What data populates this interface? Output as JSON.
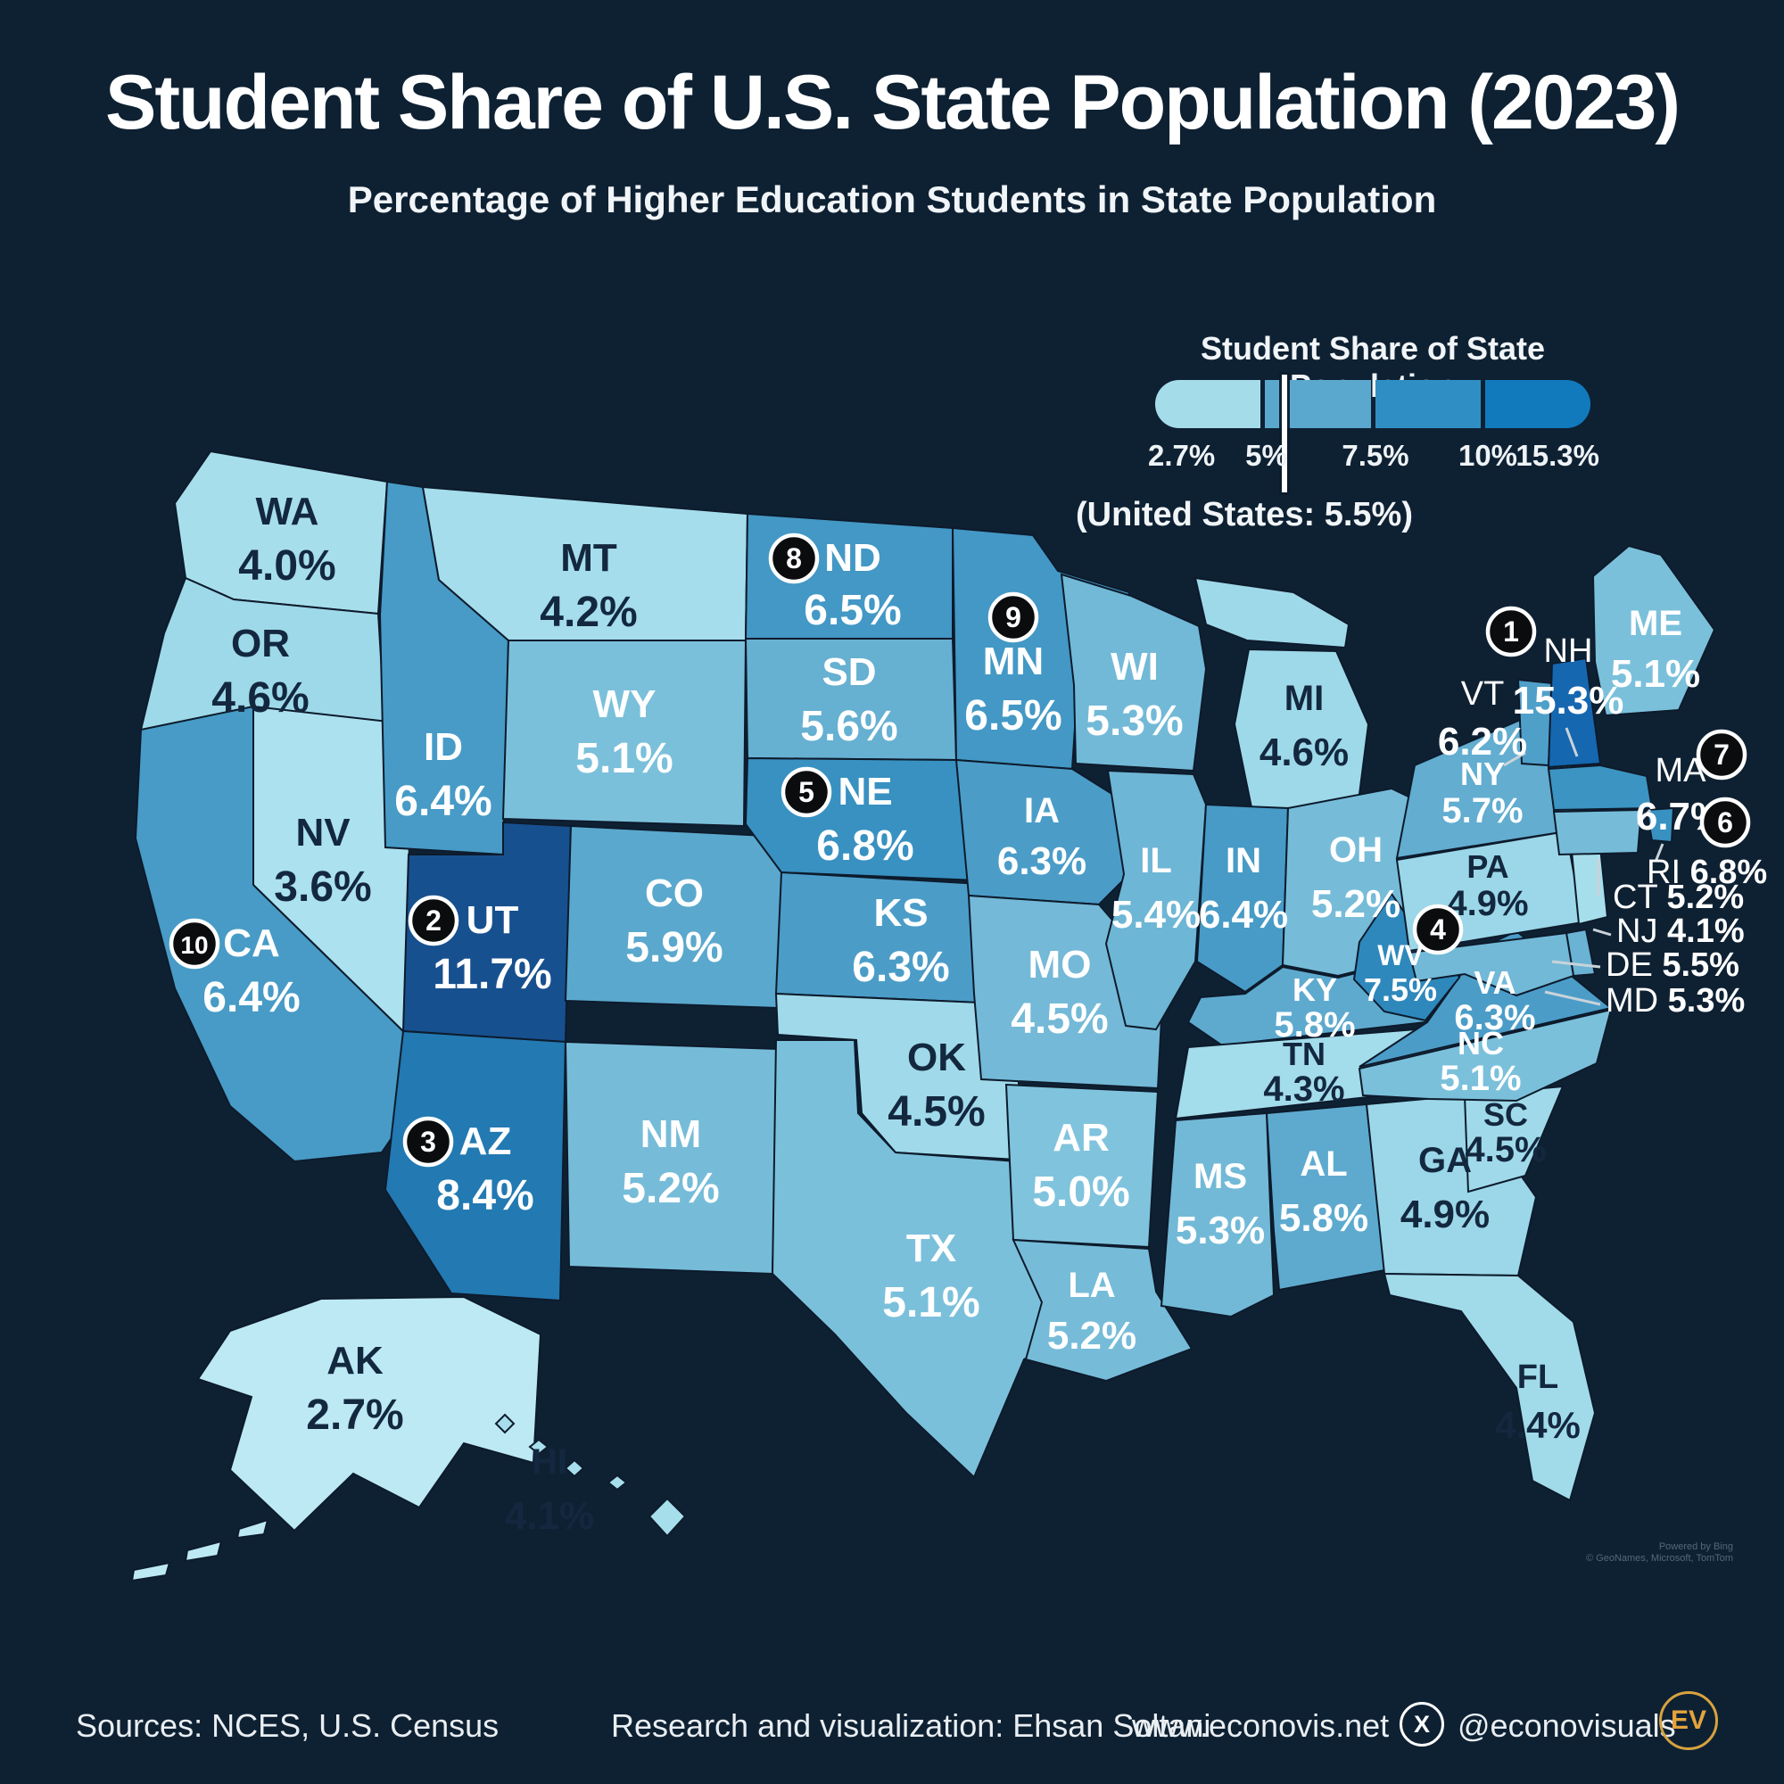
{
  "title": "Student Share of U.S. State Population (2023)",
  "subtitle": "Percentage of Higher Education Students in State Population",
  "legend": {
    "title": "Student Share of State Population",
    "ticks": [
      "2.7%",
      "5%",
      "7.5%",
      "10%",
      "15.3%"
    ],
    "colors": [
      "#a5dcea",
      "#5ba8ce",
      "#2f8fc4",
      "#117abc"
    ],
    "us_note": "(United States: 5.5%)"
  },
  "map": {
    "attribution_line1": "Powered by Bing",
    "attribution_line2": "© GeoNames, Microsoft, TomTom"
  },
  "states": [
    {
      "abbr": "WA",
      "value": "4.0%",
      "rank": null,
      "fill": "#a7deec",
      "dark_label": true
    },
    {
      "abbr": "OR",
      "value": "4.6%",
      "rank": null,
      "fill": "#9ed9e9",
      "dark_label": true
    },
    {
      "abbr": "CA",
      "value": "6.4%",
      "rank": 10,
      "fill": "#479bc6",
      "dark_label": false
    },
    {
      "abbr": "NV",
      "value": "3.6%",
      "rank": null,
      "fill": "#ace1ef",
      "dark_label": true
    },
    {
      "abbr": "ID",
      "value": "6.4%",
      "rank": null,
      "fill": "#479bc6",
      "dark_label": false
    },
    {
      "abbr": "MT",
      "value": "4.2%",
      "rank": null,
      "fill": "#a5ddec",
      "dark_label": true
    },
    {
      "abbr": "WY",
      "value": "5.1%",
      "rank": null,
      "fill": "#7bc0db",
      "dark_label": false
    },
    {
      "abbr": "UT",
      "value": "11.7%",
      "rank": 2,
      "fill": "#17508f",
      "dark_label": false
    },
    {
      "abbr": "CO",
      "value": "5.9%",
      "rank": null,
      "fill": "#5aa8cd",
      "dark_label": false
    },
    {
      "abbr": "AZ",
      "value": "8.4%",
      "rank": 3,
      "fill": "#2379b2",
      "dark_label": false
    },
    {
      "abbr": "NM",
      "value": "5.2%",
      "rank": null,
      "fill": "#76bcd9",
      "dark_label": false
    },
    {
      "abbr": "ND",
      "value": "6.5%",
      "rank": 8,
      "fill": "#4398c5",
      "dark_label": false
    },
    {
      "abbr": "SD",
      "value": "5.6%",
      "rank": null,
      "fill": "#66b0d2",
      "dark_label": false
    },
    {
      "abbr": "NE",
      "value": "6.8%",
      "rank": 5,
      "fill": "#3891c1",
      "dark_label": false
    },
    {
      "abbr": "KS",
      "value": "6.3%",
      "rank": null,
      "fill": "#4b9dc8",
      "dark_label": false
    },
    {
      "abbr": "OK",
      "value": "4.5%",
      "rank": null,
      "fill": "#a0daea",
      "dark_label": true
    },
    {
      "abbr": "TX",
      "value": "5.1%",
      "rank": null,
      "fill": "#7bc0db",
      "dark_label": false
    },
    {
      "abbr": "MN",
      "value": "6.5%",
      "rank": 9,
      "fill": "#4398c5",
      "dark_label": false
    },
    {
      "abbr": "IA",
      "value": "6.3%",
      "rank": null,
      "fill": "#4b9dc8",
      "dark_label": false
    },
    {
      "abbr": "MO",
      "value": "4.5%",
      "rank": null,
      "fill": "#74b9d7",
      "dark_label": false
    },
    {
      "abbr": "AR",
      "value": "5.0%",
      "rank": null,
      "fill": "#80c3dd",
      "dark_label": false
    },
    {
      "abbr": "LA",
      "value": "5.2%",
      "rank": null,
      "fill": "#76bcd9",
      "dark_label": false
    },
    {
      "abbr": "WI",
      "value": "5.3%",
      "rank": null,
      "fill": "#72b9d7",
      "dark_label": false
    },
    {
      "abbr": "IL",
      "value": "5.4%",
      "rank": null,
      "fill": "#6eb6d5",
      "dark_label": false
    },
    {
      "abbr": "MI",
      "value": "4.6%",
      "rank": null,
      "fill": "#9ed9e9",
      "dark_label": true
    },
    {
      "abbr": "IN",
      "value": "6.4%",
      "rank": null,
      "fill": "#479bc6",
      "dark_label": false
    },
    {
      "abbr": "OH",
      "value": "5.2%",
      "rank": null,
      "fill": "#76bcd9",
      "dark_label": false
    },
    {
      "abbr": "KY",
      "value": "5.8%",
      "rank": null,
      "fill": "#5eaacf",
      "dark_label": false
    },
    {
      "abbr": "TN",
      "value": "4.3%",
      "rank": null,
      "fill": "#a3dceb",
      "dark_label": true
    },
    {
      "abbr": "MS",
      "value": "5.3%",
      "rank": null,
      "fill": "#72b9d7",
      "dark_label": false
    },
    {
      "abbr": "AL",
      "value": "5.8%",
      "rank": null,
      "fill": "#5eaacf",
      "dark_label": false
    },
    {
      "abbr": "GA",
      "value": "4.9%",
      "rank": null,
      "fill": "#9bd7e8",
      "dark_label": true
    },
    {
      "abbr": "FL",
      "value": "4.4%",
      "rank": null,
      "fill": "#a1dbea",
      "dark_label": true
    },
    {
      "abbr": "SC",
      "value": "4.5%",
      "rank": null,
      "fill": "#a0daea",
      "dark_label": true
    },
    {
      "abbr": "NC",
      "value": "5.1%",
      "rank": null,
      "fill": "#7bc0db",
      "dark_label": false
    },
    {
      "abbr": "VA",
      "value": "6.3%",
      "rank": null,
      "fill": "#4b9dc8",
      "dark_label": false
    },
    {
      "abbr": "WV",
      "value": "7.5%",
      "rank": 4,
      "fill": "#2e88bc",
      "dark_label": false
    },
    {
      "abbr": "PA",
      "value": "4.9%",
      "rank": null,
      "fill": "#9bd7e8",
      "dark_label": true
    },
    {
      "abbr": "NY",
      "value": "5.7%",
      "rank": null,
      "fill": "#62add0",
      "dark_label": false
    },
    {
      "abbr": "NJ",
      "value": "4.1%",
      "rank": null,
      "fill": "#a7deec",
      "dark_label": false
    },
    {
      "abbr": "DE",
      "value": "5.5%",
      "rank": null,
      "fill": "#6ab3d4",
      "dark_label": false
    },
    {
      "abbr": "MD",
      "value": "5.3%",
      "rank": null,
      "fill": "#72b9d7",
      "dark_label": false
    },
    {
      "abbr": "VT",
      "value": "6.2%",
      "rank": null,
      "fill": "#4fa0c9",
      "dark_label": false
    },
    {
      "abbr": "NH",
      "value": "15.3%",
      "rank": 1,
      "fill": "#1567b0",
      "dark_label": false
    },
    {
      "abbr": "ME",
      "value": "5.1%",
      "rank": null,
      "fill": "#7bc0db",
      "dark_label": false
    },
    {
      "abbr": "MA",
      "value": "6.7%",
      "rank": 7,
      "fill": "#3c94c2",
      "dark_label": false
    },
    {
      "abbr": "RI",
      "value": "6.8%",
      "rank": 6,
      "fill": "#3891c1",
      "dark_label": false
    },
    {
      "abbr": "CT",
      "value": "5.2%",
      "rank": null,
      "fill": "#76bcd9",
      "dark_label": false
    },
    {
      "abbr": "AK",
      "value": "2.7%",
      "rank": null,
      "fill": "#bce9f4",
      "dark_label": true
    },
    {
      "abbr": "HI",
      "value": "4.1%",
      "rank": null,
      "fill": "#a7deec",
      "dark_label": true
    }
  ],
  "footer": {
    "sources": "Sources: NCES, U.S. Census",
    "credit": "Research and visualization: Ehsan Soltani",
    "website": "www.econovis.net",
    "x_symbol": "X",
    "handle": "@econovisuals",
    "logo_text": "EV"
  }
}
